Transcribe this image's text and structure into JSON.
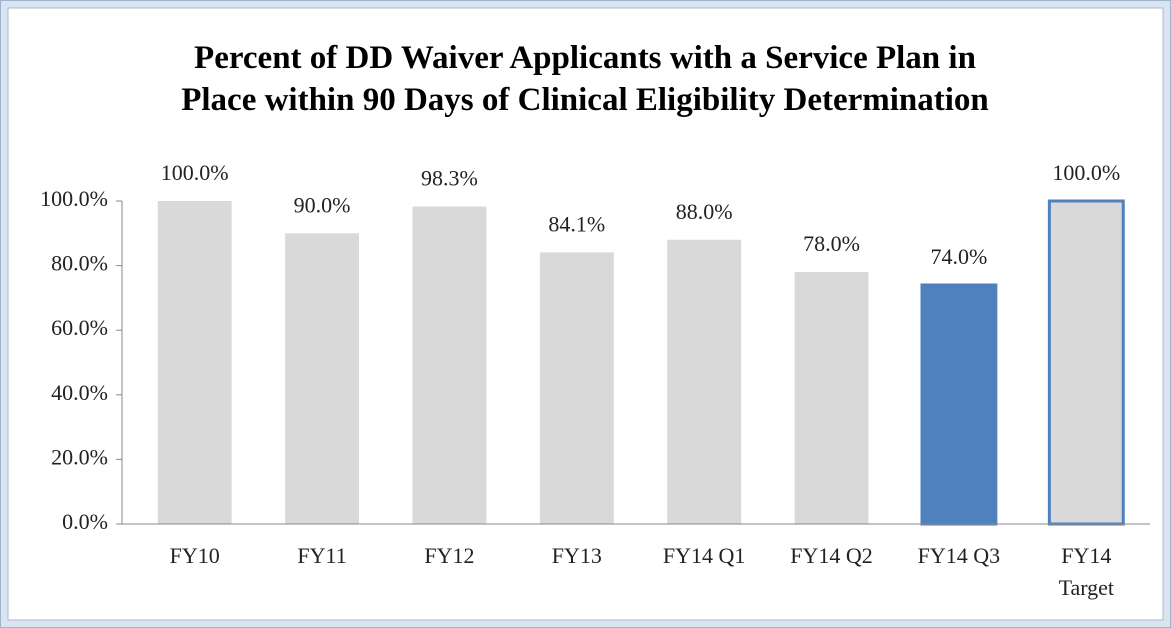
{
  "chart_data": {
    "type": "bar",
    "title": "Percent of DD Waiver Applicants with a Service Plan in\nPlace within 90 Days of Clinical Eligibility Determination",
    "categories": [
      "FY10",
      "FY11",
      "FY12",
      "FY13",
      "FY14 Q1",
      "FY14 Q2",
      "FY14 Q3",
      "FY14\nTarget"
    ],
    "values": [
      100.0,
      90.0,
      98.3,
      84.1,
      88.0,
      78.0,
      74.0,
      100.0
    ],
    "value_labels": [
      "100.0%",
      "90.0%",
      "98.3%",
      "84.1%",
      "88.0%",
      "78.0%",
      "74.0%",
      "100.0%"
    ],
    "colors": [
      "#d9d9d9",
      "#d9d9d9",
      "#d9d9d9",
      "#d9d9d9",
      "#d9d9d9",
      "#d9d9d9",
      "#4f81bd",
      "#d9d9d9"
    ],
    "edge_colors": [
      null,
      null,
      null,
      null,
      null,
      null,
      "#4f81bd",
      "#4f81bd"
    ],
    "ylim": [
      0,
      100
    ],
    "yticks": [
      {
        "value": 0,
        "label": "0.0%"
      },
      {
        "value": 20,
        "label": "20.0%"
      },
      {
        "value": 40,
        "label": "40.0%"
      },
      {
        "value": 60,
        "label": "60.0%"
      },
      {
        "value": 80,
        "label": "80.0%"
      },
      {
        "value": 100,
        "label": "100.0%"
      }
    ],
    "grid": false
  }
}
